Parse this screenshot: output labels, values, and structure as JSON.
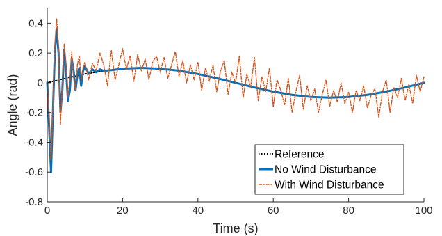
{
  "chart_data": {
    "type": "line",
    "xlabel": "Time (s)",
    "ylabel": "Angle (rad)",
    "xlim": [
      0,
      100
    ],
    "ylim": [
      -0.8,
      0.5
    ],
    "xticks": [
      0,
      20,
      40,
      60,
      80,
      100
    ],
    "xtick_labels": [
      "0",
      "20",
      "40",
      "60",
      "80",
      "100"
    ],
    "yticks": [
      -0.8,
      -0.6,
      -0.4,
      -0.2,
      0,
      0.2,
      0.4
    ],
    "ytick_labels": [
      "-0.8",
      "-0.6",
      "-0.4",
      "-0.2",
      "0",
      "0.2",
      "0.4"
    ],
    "grid": false,
    "legend_position": "bottom-right",
    "series": [
      {
        "name": "Reference",
        "color": "#000000",
        "style": "dotted",
        "x": [
          0,
          5,
          10,
          15,
          20,
          25,
          30,
          35,
          40,
          45,
          50,
          55,
          60,
          65,
          70,
          75,
          80,
          85,
          90,
          95,
          100
        ],
        "y": [
          0,
          0.031,
          0.059,
          0.081,
          0.095,
          0.1,
          0.095,
          0.081,
          0.059,
          0.031,
          0,
          -0.031,
          -0.059,
          -0.081,
          -0.095,
          -0.1,
          -0.095,
          -0.081,
          -0.059,
          -0.031,
          0
        ]
      },
      {
        "name": "No Wind Disturbance",
        "color": "#0072BD",
        "style": "solid",
        "x": [
          0,
          0.5,
          1,
          1.5,
          2,
          2.5,
          3,
          3.5,
          4,
          4.5,
          5,
          5.5,
          6,
          6.5,
          7,
          7.5,
          8,
          8.5,
          9,
          9.5,
          10,
          11,
          12,
          13,
          14,
          15,
          17,
          20,
          25,
          30,
          35,
          40,
          45,
          50,
          55,
          60,
          65,
          70,
          75,
          80,
          85,
          90,
          95,
          100
        ],
        "y": [
          0,
          -0.3,
          -0.6,
          -0.2,
          0.2,
          0.36,
          0.2,
          -0.2,
          -0.05,
          0.22,
          0.08,
          -0.12,
          -0.05,
          0.16,
          0.08,
          -0.05,
          0.05,
          0.1,
          -0.02,
          0.08,
          0.11,
          0.06,
          0.09,
          0.07,
          0.09,
          0.08,
          0.085,
          0.095,
          0.1,
          0.095,
          0.081,
          0.059,
          0.031,
          0,
          -0.031,
          -0.059,
          -0.081,
          -0.095,
          -0.1,
          -0.095,
          -0.081,
          -0.059,
          -0.031,
          0
        ]
      },
      {
        "name": "With Wind Disturbance",
        "color": "#D95319",
        "style": "dash-dot",
        "x": [
          0,
          0.5,
          1,
          1.5,
          2,
          2.5,
          3,
          3.5,
          4,
          4.5,
          5,
          5.5,
          6,
          6.5,
          7,
          7.5,
          8,
          8.5,
          9,
          9.5,
          10,
          11,
          12,
          13,
          14,
          15,
          16,
          17,
          18,
          19,
          20,
          21,
          22,
          23,
          24,
          25,
          26,
          27,
          28,
          29,
          30,
          31,
          32,
          33,
          34,
          35,
          36,
          37,
          38,
          39,
          40,
          41,
          42,
          43,
          44,
          45,
          46,
          47,
          48,
          49,
          50,
          51,
          52,
          53,
          54,
          55,
          56,
          57,
          58,
          59,
          60,
          61,
          62,
          63,
          64,
          65,
          66,
          67,
          68,
          69,
          70,
          71,
          72,
          73,
          74,
          75,
          76,
          77,
          78,
          79,
          80,
          81,
          82,
          83,
          84,
          85,
          86,
          87,
          88,
          89,
          90,
          91,
          92,
          93,
          94,
          95,
          96,
          97,
          98,
          99,
          100
        ],
        "y": [
          0,
          -0.25,
          -0.52,
          -0.18,
          0.25,
          0.43,
          0.22,
          -0.28,
          -0.02,
          0.26,
          0.12,
          -0.1,
          0.02,
          0.21,
          0.03,
          -0.05,
          0.12,
          0.18,
          0.02,
          0.1,
          0.14,
          0.02,
          0.13,
          0.08,
          0.2,
          0.12,
          -0.02,
          0.22,
          0.02,
          0.12,
          0.23,
          0.09,
          0.18,
          0.01,
          0.19,
          0.08,
          0.16,
          0.02,
          0.14,
          0.18,
          0.07,
          0.17,
          0.03,
          0.12,
          0.21,
          0.04,
          0.15,
          0.0,
          0.12,
          0.02,
          0.14,
          -0.05,
          0.1,
          0.01,
          0.12,
          -0.06,
          0.08,
          0.15,
          -0.08,
          0.07,
          0.0,
          0.18,
          -0.1,
          0.06,
          -0.03,
          0.17,
          -0.12,
          0.04,
          -0.06,
          0.1,
          -0.16,
          0.02,
          -0.05,
          -0.15,
          0.03,
          -0.2,
          -0.06,
          0.05,
          -0.18,
          -0.02,
          -0.12,
          -0.04,
          -0.2,
          -0.08,
          0.02,
          -0.16,
          -0.05,
          -0.13,
          0.0,
          -0.14,
          -0.06,
          -0.2,
          -0.05,
          -0.12,
          -0.02,
          -0.17,
          -0.08,
          -0.04,
          -0.23,
          -0.06,
          0.02,
          -0.2,
          -0.03,
          -0.1,
          0.03,
          -0.12,
          -0.01,
          -0.14,
          0.05,
          -0.06,
          0.04
        ]
      }
    ]
  }
}
